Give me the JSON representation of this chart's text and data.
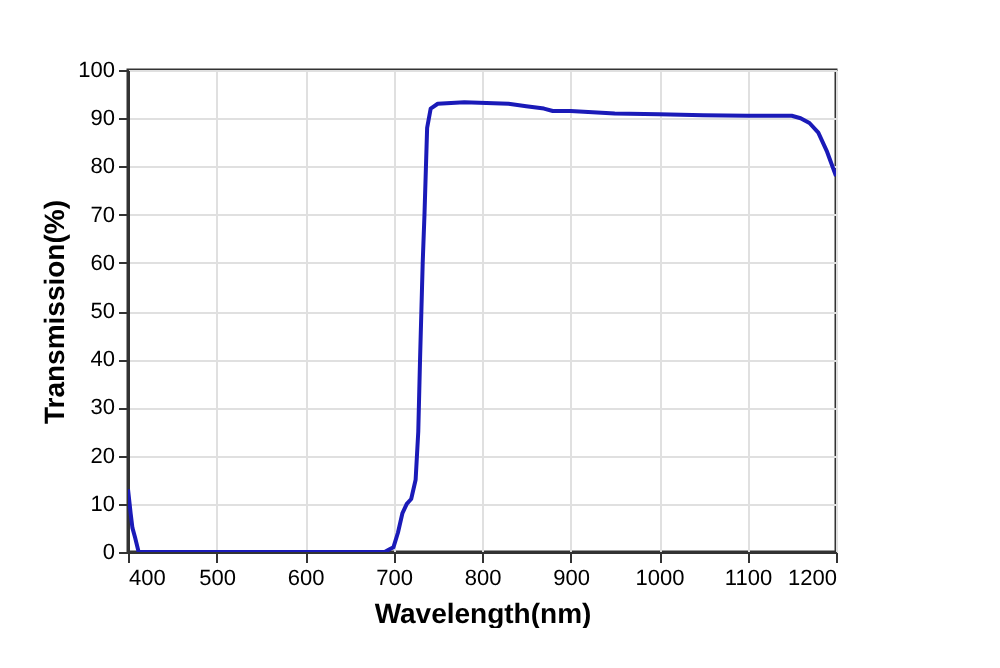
{
  "chart_data": {
    "type": "line",
    "xlabel": "Wavelength(nm)",
    "ylabel": "Transmission(%)",
    "xlim": [
      400,
      1200
    ],
    "ylim": [
      0,
      100
    ],
    "xticks": [
      400,
      500,
      600,
      700,
      800,
      900,
      1000,
      1100,
      1200
    ],
    "yticks": [
      0,
      10,
      20,
      30,
      40,
      50,
      60,
      70,
      80,
      90,
      100
    ],
    "grid": true,
    "series": [
      {
        "color": "#1a1ab8",
        "x": [
          400,
          403,
          405,
          408,
          412,
          450,
          500,
          600,
          690,
          695,
          700,
          705,
          710,
          715,
          720,
          725,
          728,
          730,
          733,
          735,
          738,
          742,
          750,
          780,
          830,
          850,
          870,
          880,
          900,
          950,
          1000,
          1050,
          1100,
          1150,
          1160,
          1170,
          1180,
          1190,
          1200
        ],
        "values": [
          13,
          8,
          5,
          3,
          0,
          0,
          0,
          0,
          0,
          0.5,
          1,
          4,
          8,
          10,
          11,
          15,
          25,
          40,
          60,
          70,
          88,
          92,
          93,
          93.3,
          93,
          92.5,
          92,
          91.5,
          91.5,
          91,
          90.8,
          90.6,
          90.5,
          90.5,
          90,
          89,
          87,
          83,
          78
        ]
      }
    ]
  }
}
